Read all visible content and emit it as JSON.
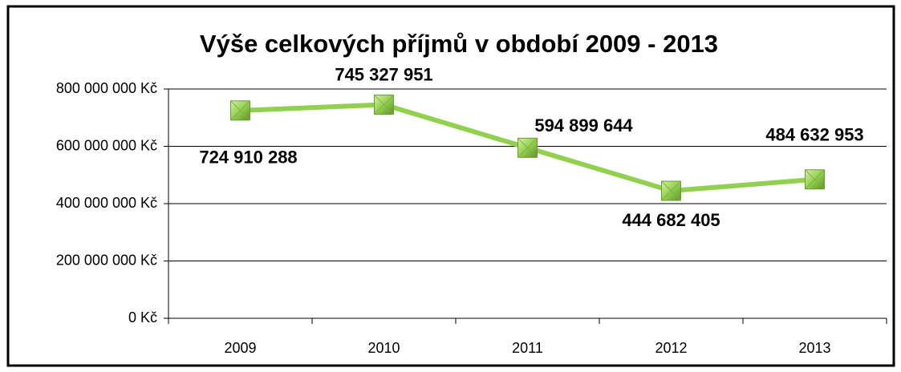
{
  "chart_data": {
    "type": "line",
    "title": "Výše celkových příjmů v období 2009 - 2013",
    "categories": [
      "2009",
      "2010",
      "2011",
      "2012",
      "2013"
    ],
    "series": [
      {
        "color": "#92d050",
        "values": [
          724910288,
          745327951,
          594899644,
          444682405,
          484632953
        ],
        "value_labels": [
          "724 910 288",
          "745 327 951",
          "594 899 644",
          "444 682 405",
          "484 632 953"
        ]
      }
    ],
    "ylim": [
      0,
      800000000
    ],
    "yticks": [
      {
        "value": 0,
        "label": "0 Kč"
      },
      {
        "value": 200000000,
        "label": "200 000 000 Kč"
      },
      {
        "value": 400000000,
        "label": "400 000 000 Kč"
      },
      {
        "value": 600000000,
        "label": "600 000 000 Kč"
      },
      {
        "value": 800000000,
        "label": "800 000 000 Kč"
      }
    ],
    "grid": true
  }
}
